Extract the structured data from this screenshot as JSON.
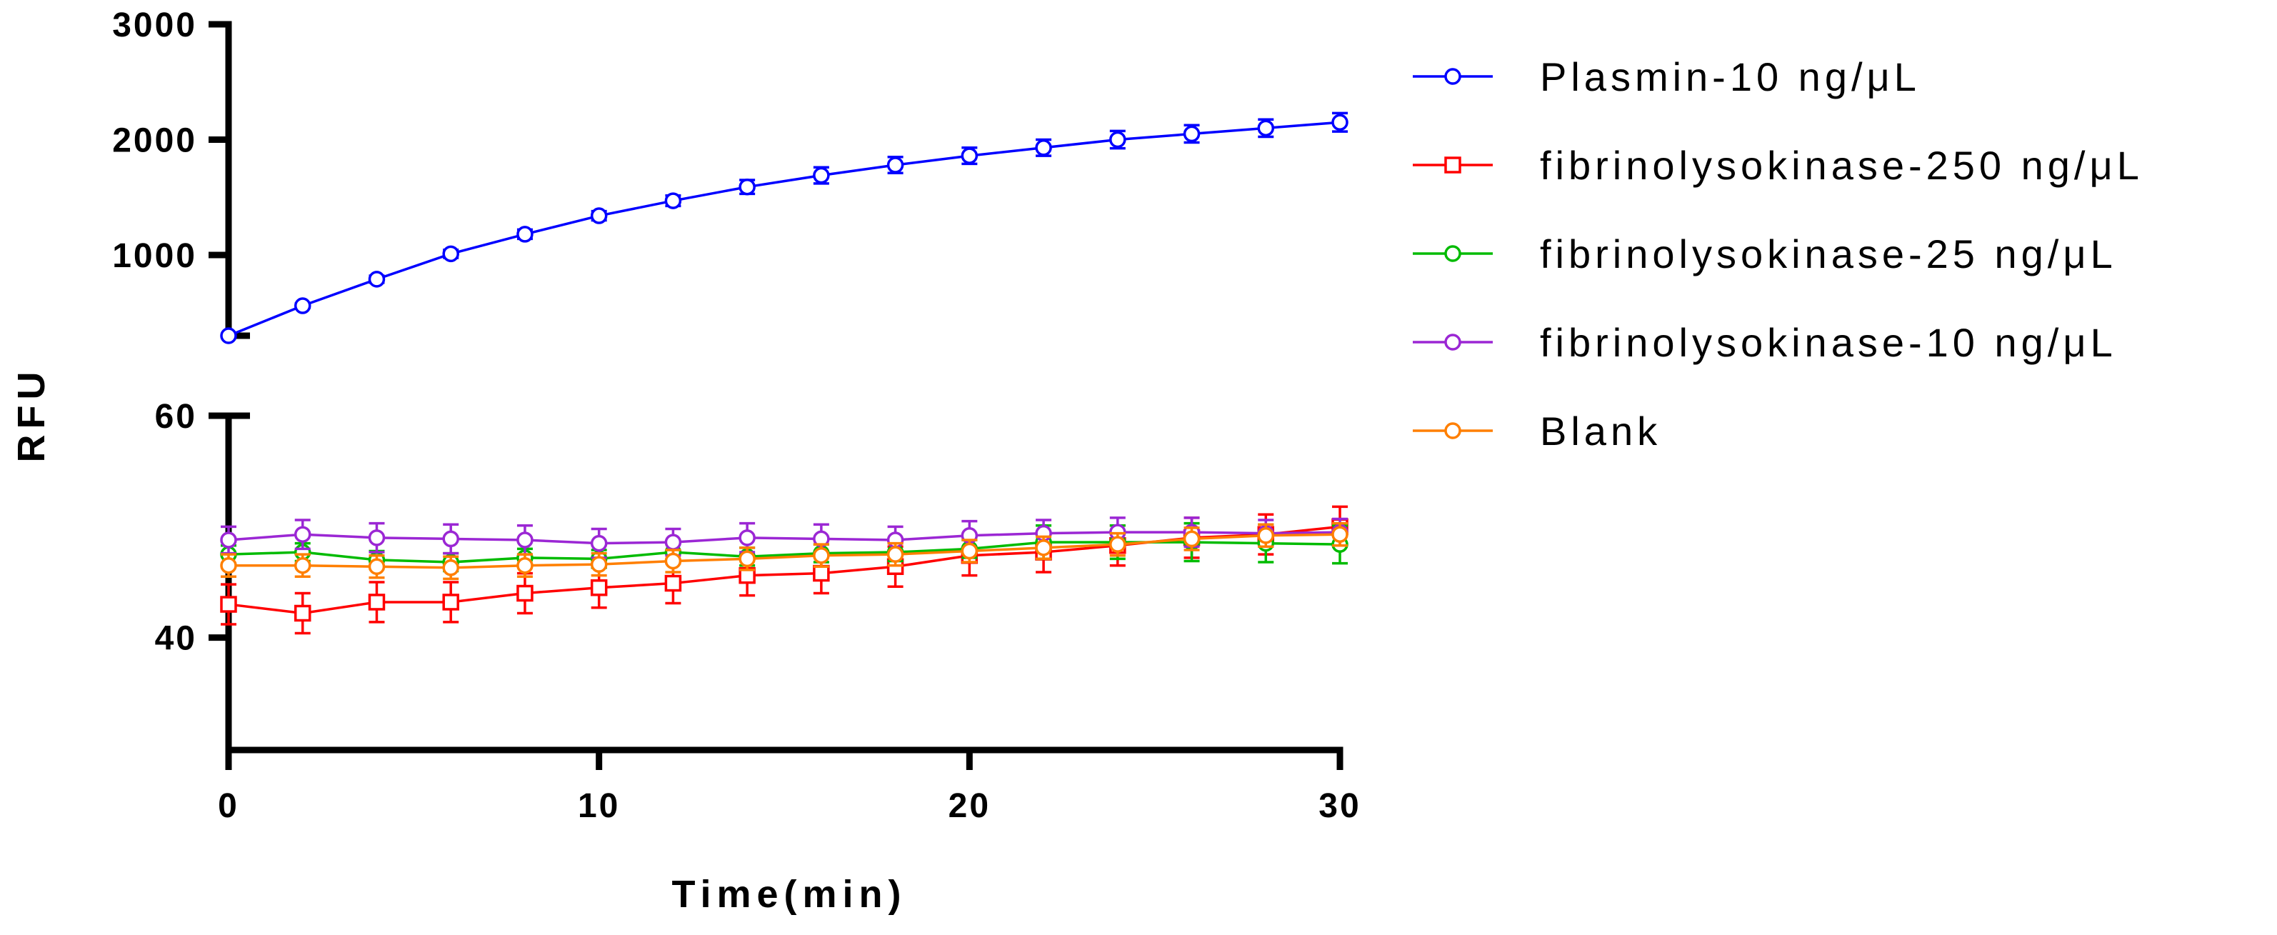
{
  "chart_data": {
    "type": "line",
    "title": "",
    "xlabel": "Time(min)",
    "ylabel": "RFU",
    "x": [
      0,
      2,
      4,
      6,
      8,
      10,
      12,
      14,
      16,
      18,
      20,
      22,
      24,
      26,
      28,
      30
    ],
    "x_ticks": [
      "0",
      "10",
      "20",
      "30"
    ],
    "xlim": [
      0,
      30
    ],
    "y_axis_break": {
      "upper_segment": {
        "ylim": [
          300,
          3000
        ],
        "ticks": [
          "1000",
          "2000",
          "3000"
        ]
      },
      "lower_segment": {
        "ylim": [
          30,
          60
        ],
        "ticks": [
          "40",
          "60"
        ]
      }
    },
    "grid": false,
    "legend_position": "right",
    "series": [
      {
        "name": "Plasmin-10 ng/μL",
        "color": "#0000ff",
        "marker": "circle",
        "segment": "upper",
        "values": [
          300,
          560,
          790,
          1010,
          1180,
          1340,
          1470,
          1590,
          1690,
          1780,
          1860,
          1930,
          2000,
          2050,
          2100,
          2150
        ],
        "errors": [
          0,
          20,
          30,
          35,
          40,
          40,
          45,
          60,
          70,
          70,
          70,
          70,
          75,
          75,
          75,
          80
        ]
      },
      {
        "name": "fibrinolysokinase-250 ng/μL",
        "color": "#ff0000",
        "marker": "square",
        "segment": "lower",
        "values": [
          43.0,
          42.2,
          43.2,
          43.2,
          44.0,
          44.5,
          44.9,
          45.6,
          45.8,
          46.4,
          47.4,
          47.7,
          48.3,
          49.0,
          49.3,
          50.0
        ],
        "errors": [
          1.8,
          1.8,
          1.8,
          1.8,
          1.8,
          1.8,
          1.8,
          1.8,
          1.8,
          1.8,
          1.8,
          1.8,
          1.8,
          1.8,
          1.8,
          1.8
        ]
      },
      {
        "name": "fibrinolysokinase-25 ng/μL",
        "color": "#00bb00",
        "marker": "circle",
        "segment": "lower",
        "values": [
          47.5,
          47.7,
          47.0,
          46.8,
          47.2,
          47.1,
          47.7,
          47.3,
          47.6,
          47.7,
          48.0,
          48.6,
          48.6,
          48.6,
          48.5,
          48.4
        ],
        "errors": [
          0.8,
          0.8,
          0.8,
          0.8,
          0.8,
          0.8,
          0.8,
          0.8,
          0.8,
          0.8,
          0.8,
          1.5,
          1.5,
          1.7,
          1.7,
          1.7
        ]
      },
      {
        "name": "fibrinolysokinase-10 ng/μL",
        "color": "#9b27d4",
        "marker": "circle",
        "segment": "lower",
        "values": [
          48.8,
          49.3,
          49.0,
          48.9,
          48.8,
          48.5,
          48.6,
          49.0,
          48.9,
          48.8,
          49.2,
          49.4,
          49.5,
          49.5,
          49.4,
          49.5
        ],
        "errors": [
          1.2,
          1.3,
          1.3,
          1.3,
          1.3,
          1.3,
          1.2,
          1.3,
          1.3,
          1.2,
          1.3,
          1.2,
          1.3,
          1.3,
          1.2,
          1.2
        ]
      },
      {
        "name": "Blank",
        "color": "#ff7f00",
        "marker": "circle",
        "segment": "lower",
        "values": [
          46.5,
          46.5,
          46.4,
          46.3,
          46.5,
          46.6,
          46.9,
          47.1,
          47.4,
          47.5,
          47.8,
          48.1,
          48.4,
          48.9,
          49.2,
          49.3
        ],
        "errors": [
          1.0,
          1.0,
          1.0,
          1.0,
          1.0,
          1.0,
          1.0,
          1.0,
          1.0,
          1.0,
          1.0,
          1.0,
          1.0,
          1.0,
          1.0,
          1.0
        ]
      }
    ]
  }
}
